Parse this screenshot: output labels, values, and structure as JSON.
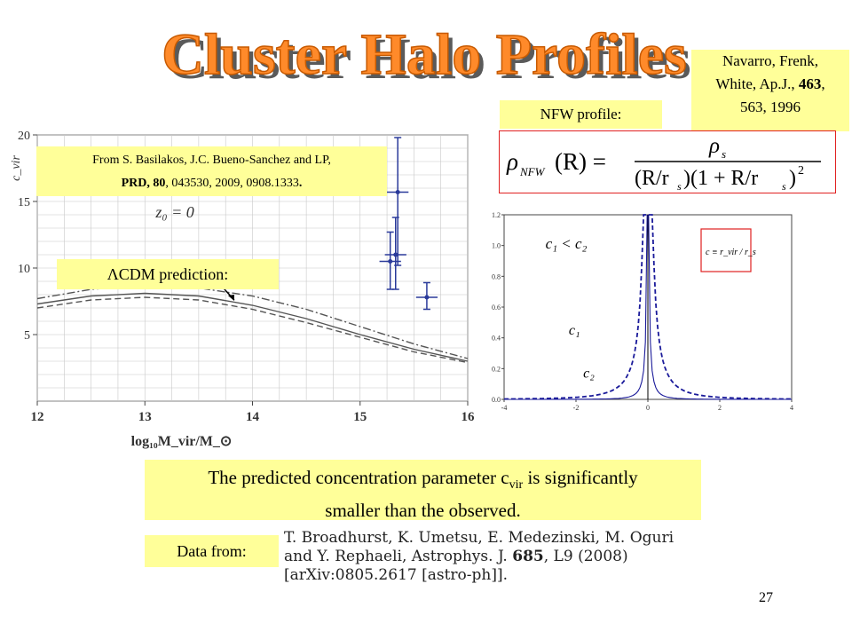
{
  "slide": {
    "title": "Cluster Halo Profiles",
    "page_number": "27"
  },
  "reference_box": {
    "line1": "Navarro, Frenk,",
    "line2_prefix": "White, Ap.J., ",
    "line2_bold": "463",
    "line2_suffix": ",",
    "line3": "563, 1996"
  },
  "nfw_label": "NFW profile:",
  "formula": {
    "lhs": "ρ",
    "lhs_sub": "NFW",
    "lhs_arg": "(R) =",
    "numerator": "ρ",
    "numerator_sub": "s",
    "denominator": "(R/r",
    "denominator_sub": "s",
    "denominator_rest": ")(1 + R/r",
    "denominator_sub2": "s",
    "denominator_end": ")",
    "denominator_sup": "2"
  },
  "from_box": {
    "line1": "From S. Basilakos, J.C. Bueno-Sanchez and LP,",
    "line2_bold": "PRD, 80",
    "line2_rest": ", 043530, 2009, 0908.1333",
    "line2_end": "."
  },
  "lcdm_label": "ΛCDM prediction:",
  "conclusion": {
    "text_a": "The predicted concentration parameter c",
    "sub": "vir",
    "text_b": " is significantly",
    "line2": "smaller than the observed."
  },
  "data_label": "Data from:",
  "data_reference": {
    "line1": "T. Broadhurst, K. Umetsu, E. Medezinski, M. Oguri",
    "line2_a": "and Y. Rephaeli, Astrophys. J. ",
    "line2_bold": "685",
    "line2_b": ", L9 (2008)",
    "line3": "[arXiv:0805.2617 [astro-ph]]."
  },
  "chart_data": [
    {
      "type": "line",
      "xlabel": "log₁₀M_vir/M_⊙",
      "ylabel": "c_vir",
      "annotation": "z₀ = 0",
      "xlim": [
        12,
        16
      ],
      "ylim": [
        0,
        20
      ],
      "xticks": [
        "12",
        "13",
        "14",
        "15",
        "16"
      ],
      "yticks": [
        "5",
        "10",
        "15",
        "20"
      ],
      "grid": true,
      "series": [
        {
          "style": "solid",
          "x": [
            12,
            12.5,
            13,
            13.5,
            14,
            14.5,
            15,
            15.5,
            16
          ],
          "y": [
            7.3,
            7.9,
            8.1,
            7.9,
            7.2,
            6.2,
            5.0,
            3.9,
            3.0
          ]
        },
        {
          "style": "dashed",
          "x": [
            12,
            12.5,
            13,
            13.5,
            14,
            14.5,
            15,
            15.5,
            16
          ],
          "y": [
            7.0,
            7.6,
            7.8,
            7.6,
            6.9,
            5.9,
            4.8,
            3.7,
            2.9
          ]
        },
        {
          "style": "dashdot",
          "x": [
            12,
            12.5,
            13,
            13.5,
            14,
            14.5,
            15,
            15.5,
            16
          ],
          "y": [
            7.7,
            8.4,
            8.7,
            8.5,
            7.9,
            6.9,
            5.6,
            4.3,
            3.2
          ]
        }
      ],
      "points": [
        {
          "x": 15.28,
          "y": 10.5,
          "yerr": [
            2.1,
            2.2
          ],
          "xerr": 0.1
        },
        {
          "x": 15.33,
          "y": 11.0,
          "yerr": [
            2.6,
            2.8
          ],
          "xerr": 0.1
        },
        {
          "x": 15.35,
          "y": 15.7,
          "yerr": [
            5.5,
            4.1
          ],
          "xerr": 0.1
        },
        {
          "x": 15.62,
          "y": 7.8,
          "yerr": [
            0.9,
            1.1
          ],
          "xerr": 0.1
        }
      ]
    },
    {
      "type": "line",
      "xlim": [
        -4,
        4
      ],
      "ylim": [
        0,
        1.2
      ],
      "xticks": [
        "-4",
        "-2",
        "0",
        "2",
        "4"
      ],
      "yticks": [
        "0.0",
        "0.2",
        "0.4",
        "0.6",
        "0.8",
        "1.0",
        "1.2"
      ],
      "annotations": [
        "c₁ < c₂",
        "c₁",
        "c₂"
      ],
      "inset_formula": "c ≡ r_vir / r_s",
      "series": [
        {
          "style": "solid",
          "label": "c₁"
        },
        {
          "style": "dashed",
          "label": "c₂"
        }
      ]
    }
  ]
}
